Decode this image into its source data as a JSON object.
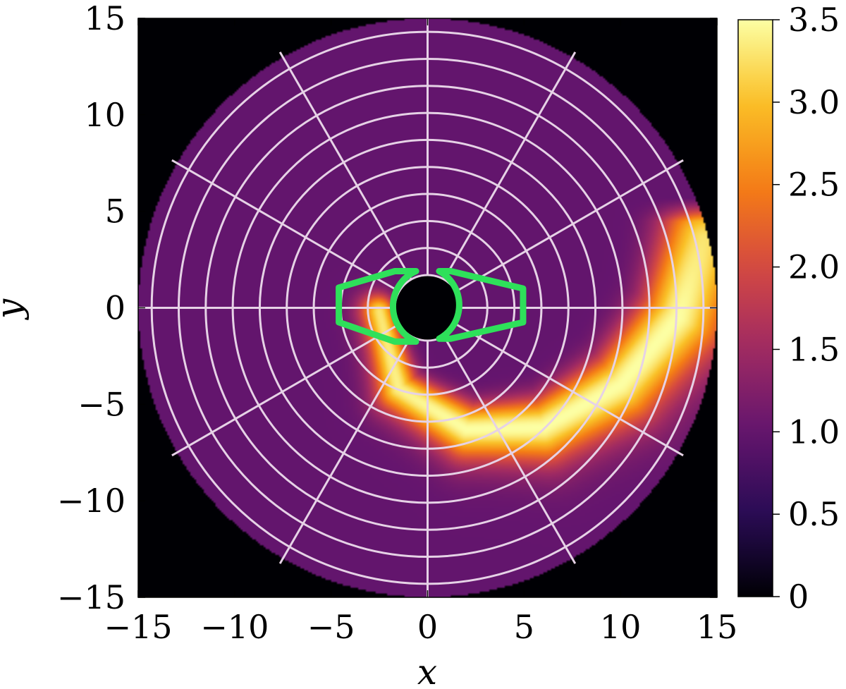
{
  "chart_data": {
    "type": "heatmap",
    "title": "",
    "xlabel": "x",
    "ylabel": "y",
    "xlim": [
      -15,
      15
    ],
    "ylim": [
      -15,
      15
    ],
    "x_ticks": [
      -15,
      -10,
      -5,
      0,
      5,
      10,
      15
    ],
    "y_ticks": [
      -15,
      -10,
      -5,
      0,
      5,
      10,
      15
    ],
    "x_tick_labels": [
      "−15",
      "−10",
      "−5",
      "0",
      "5",
      "10",
      "15"
    ],
    "y_tick_labels": [
      "15",
      "10",
      "5",
      "0",
      "−5",
      "−10",
      "−15"
    ],
    "colorbar": {
      "colormap": "inferno",
      "range": [
        0,
        3.5
      ],
      "ticks": [
        0,
        0.5,
        1.0,
        1.5,
        2.0,
        2.5,
        3.0,
        3.5
      ],
      "tick_labels": [
        "0",
        "0.5",
        "1.0",
        "1.5",
        "2.0",
        "2.5",
        "3.0",
        "3.5"
      ]
    },
    "domain": {
      "shape": "annulus",
      "inner_radius": 1.7,
      "outer_radius": 15,
      "background_value": 1.0,
      "outside_value": 0
    },
    "spiral_arm": {
      "description_values": [
        {
          "x": -2.5,
          "y": -0.2,
          "value": 3.3
        },
        {
          "x": -1.5,
          "y": -4.2,
          "value": 3.4
        },
        {
          "x": 2.0,
          "y": -6.3,
          "value": 3.5
        },
        {
          "x": 6.0,
          "y": -6.2,
          "value": 3.5
        },
        {
          "x": 10.0,
          "y": -4.0,
          "value": 3.5
        },
        {
          "x": 13.0,
          "y": -0.5,
          "value": 3.5
        },
        {
          "x": 14.3,
          "y": 3.5,
          "value": 3.3
        }
      ]
    },
    "grid": {
      "type": "polar",
      "ring_radii": [
        1.7,
        3.1,
        4.5,
        5.9,
        7.3,
        8.7,
        10.1,
        11.5,
        12.9,
        14.3
      ],
      "spoke_angles_deg": [
        0,
        30,
        60,
        90,
        120,
        150,
        180,
        210,
        240,
        270,
        300,
        330
      ],
      "spoke_inner_radius": 1.7,
      "spoke_outer_radius": 15.3,
      "color": "#e6d2e6"
    },
    "green_contours": [
      {
        "points": [
          [
            -0.6,
            1.9
          ],
          [
            -1.7,
            1.9
          ],
          [
            -4.6,
            1.05
          ],
          [
            -4.6,
            -0.75
          ],
          [
            -1.7,
            -1.75
          ],
          [
            -0.6,
            -1.75
          ]
        ],
        "arc": "left"
      },
      {
        "points": [
          [
            0.6,
            1.9
          ],
          [
            1.2,
            1.9
          ],
          [
            4.95,
            1.0
          ],
          [
            4.95,
            -0.75
          ],
          [
            1.2,
            -1.6
          ],
          [
            0.6,
            -1.6
          ]
        ],
        "arc": "right"
      }
    ],
    "green_color": "#2ee05a",
    "legend": "none"
  }
}
